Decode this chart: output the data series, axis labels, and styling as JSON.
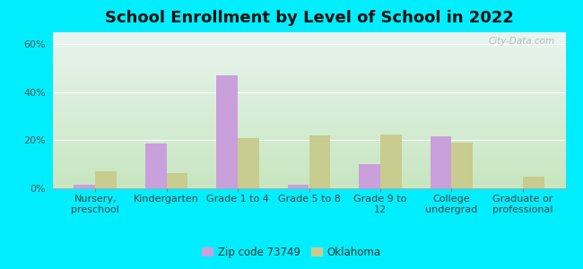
{
  "title": "School Enrollment by Level of School in 2022",
  "categories": [
    "Nursery,\npreschool",
    "Kindergarten",
    "Grade 1 to 4",
    "Grade 5 to 8",
    "Grade 9 to\n12",
    "College\nundergrad",
    "Graduate or\nprofessional"
  ],
  "zipcode_values": [
    1.5,
    18.5,
    47.0,
    1.5,
    10.0,
    21.5,
    0.0
  ],
  "oklahoma_values": [
    7.0,
    6.5,
    21.0,
    22.0,
    22.5,
    19.0,
    5.0
  ],
  "bar_color_zip": "#c9a0dc",
  "bar_color_ok": "#c8cc8e",
  "background_outer": "#00eeff",
  "gradient_top": "#e8f5f0",
  "gradient_bottom": "#c8e6c0",
  "ylim": [
    0,
    65
  ],
  "yticks": [
    0,
    20,
    40,
    60
  ],
  "ytick_labels": [
    "0%",
    "20%",
    "40%",
    "60%"
  ],
  "legend_zip_label": "Zip code 73749",
  "legend_ok_label": "Oklahoma",
  "watermark": "City-Data.com",
  "title_fontsize": 13,
  "axis_label_fontsize": 8,
  "tick_fontsize": 8
}
